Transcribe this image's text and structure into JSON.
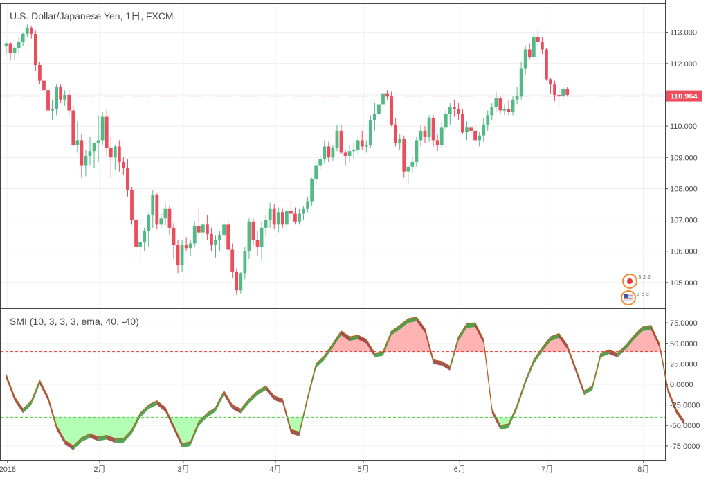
{
  "chart_data": [
    {
      "type": "candlestick",
      "title": "U.S. Dollar/Japanese Yen, 1日, FXCM",
      "ylim": [
        104.2,
        113.9
      ],
      "y_ticks": [
        "113.000",
        "112.000",
        "111.000",
        "110.000",
        "109.000",
        "108.000",
        "107.000",
        "106.000",
        "105.000"
      ],
      "last_price": "110.964",
      "up_color": "#53b987",
      "down_color": "#eb4d5c",
      "ohlc": [
        [
          112.55,
          112.7,
          112.3,
          112.65
        ],
        [
          112.65,
          112.7,
          112.1,
          112.35
        ],
        [
          112.35,
          112.55,
          112.1,
          112.5
        ],
        [
          112.5,
          112.85,
          112.35,
          112.7
        ],
        [
          112.7,
          113.0,
          112.55,
          112.95
        ],
        [
          112.95,
          113.25,
          112.85,
          113.15
        ],
        [
          113.15,
          113.2,
          112.8,
          112.95
        ],
        [
          112.95,
          113.05,
          111.75,
          111.95
        ],
        [
          111.95,
          112.05,
          111.35,
          111.45
        ],
        [
          111.45,
          111.55,
          111.05,
          111.15
        ],
        [
          111.15,
          111.25,
          110.25,
          110.5
        ],
        [
          110.5,
          110.85,
          110.2,
          110.55
        ],
        [
          110.55,
          111.35,
          110.35,
          111.25
        ],
        [
          111.25,
          111.35,
          110.75,
          110.85
        ],
        [
          110.85,
          111.15,
          110.65,
          111.0
        ],
        [
          111.0,
          111.15,
          110.35,
          110.5
        ],
        [
          110.5,
          110.65,
          109.35,
          109.4
        ],
        [
          109.4,
          110.15,
          109.15,
          109.55
        ],
        [
          109.55,
          109.75,
          108.35,
          108.75
        ],
        [
          108.75,
          109.25,
          108.4,
          109.05
        ],
        [
          109.05,
          109.65,
          108.75,
          109.2
        ],
        [
          109.2,
          109.45,
          108.65,
          109.45
        ],
        [
          109.45,
          110.35,
          108.85,
          109.55
        ],
        [
          109.55,
          110.45,
          109.4,
          110.3
        ],
        [
          110.3,
          110.55,
          109.05,
          109.3
        ],
        [
          109.3,
          109.65,
          108.35,
          109.0
        ],
        [
          109.0,
          109.4,
          108.6,
          109.35
        ],
        [
          109.35,
          109.55,
          108.55,
          108.85
        ],
        [
          108.85,
          109.0,
          108.45,
          108.65
        ],
        [
          108.65,
          108.95,
          107.75,
          107.95
        ],
        [
          107.95,
          108.05,
          106.85,
          107.0
        ],
        [
          107.0,
          107.15,
          105.85,
          106.15
        ],
        [
          106.15,
          106.75,
          105.55,
          106.3
        ],
        [
          106.3,
          106.75,
          106.0,
          106.65
        ],
        [
          106.65,
          107.2,
          106.15,
          107.15
        ],
        [
          107.15,
          107.95,
          106.75,
          107.8
        ],
        [
          107.8,
          107.85,
          106.7,
          106.85
        ],
        [
          106.85,
          107.2,
          106.75,
          107.05
        ],
        [
          107.05,
          107.55,
          106.8,
          107.35
        ],
        [
          107.35,
          107.45,
          106.5,
          106.75
        ],
        [
          106.75,
          106.9,
          105.75,
          106.2
        ],
        [
          106.2,
          106.35,
          105.3,
          105.55
        ],
        [
          105.55,
          106.35,
          105.35,
          106.2
        ],
        [
          106.2,
          106.45,
          106.0,
          106.1
        ],
        [
          106.1,
          106.35,
          105.85,
          106.25
        ],
        [
          106.25,
          106.95,
          106.15,
          106.8
        ],
        [
          106.8,
          107.35,
          106.5,
          106.6
        ],
        [
          106.6,
          106.95,
          106.35,
          106.85
        ],
        [
          106.85,
          107.15,
          106.35,
          106.55
        ],
        [
          106.55,
          106.75,
          106.0,
          106.2
        ],
        [
          106.2,
          106.5,
          105.8,
          106.35
        ],
        [
          106.35,
          106.65,
          106.0,
          106.5
        ],
        [
          106.5,
          106.95,
          106.15,
          106.85
        ],
        [
          106.85,
          107.0,
          106.0,
          106.05
        ],
        [
          106.05,
          106.25,
          105.15,
          105.35
        ],
        [
          105.35,
          105.45,
          104.6,
          104.75
        ],
        [
          104.75,
          105.35,
          104.65,
          105.3
        ],
        [
          105.3,
          106.15,
          105.1,
          106.0
        ],
        [
          106.0,
          107.05,
          105.75,
          106.95
        ],
        [
          106.95,
          107.05,
          106.2,
          106.35
        ],
        [
          106.35,
          106.65,
          105.85,
          106.15
        ],
        [
          106.15,
          106.95,
          105.7,
          106.75
        ],
        [
          106.75,
          107.15,
          106.5,
          107.0
        ],
        [
          107.0,
          107.55,
          106.75,
          107.35
        ],
        [
          107.35,
          107.5,
          106.7,
          106.85
        ],
        [
          106.85,
          107.4,
          106.6,
          107.25
        ],
        [
          107.25,
          107.35,
          106.75,
          106.85
        ],
        [
          106.85,
          107.45,
          106.7,
          107.3
        ],
        [
          107.3,
          107.65,
          107.0,
          107.2
        ],
        [
          107.2,
          107.4,
          106.85,
          106.95
        ],
        [
          106.95,
          107.35,
          106.85,
          107.2
        ],
        [
          107.2,
          107.45,
          107.0,
          107.35
        ],
        [
          107.35,
          107.75,
          107.25,
          107.6
        ],
        [
          107.6,
          108.35,
          107.45,
          108.3
        ],
        [
          108.3,
          108.85,
          108.1,
          108.75
        ],
        [
          108.75,
          109.05,
          108.6,
          108.95
        ],
        [
          108.95,
          109.55,
          108.8,
          109.35
        ],
        [
          109.35,
          109.5,
          108.85,
          109.0
        ],
        [
          109.0,
          109.4,
          108.9,
          109.3
        ],
        [
          109.3,
          110.05,
          109.2,
          109.85
        ],
        [
          109.85,
          110.05,
          109.1,
          109.15
        ],
        [
          109.15,
          109.25,
          108.75,
          109.05
        ],
        [
          109.05,
          109.4,
          108.85,
          109.2
        ],
        [
          109.2,
          109.45,
          108.95,
          109.25
        ],
        [
          109.25,
          109.65,
          109.1,
          109.55
        ],
        [
          109.55,
          109.85,
          109.25,
          109.35
        ],
        [
          109.35,
          109.55,
          109.15,
          109.4
        ],
        [
          109.4,
          110.35,
          109.3,
          110.2
        ],
        [
          110.2,
          110.75,
          109.85,
          110.4
        ],
        [
          110.4,
          110.9,
          110.25,
          110.7
        ],
        [
          110.7,
          111.45,
          110.5,
          111.05
        ],
        [
          111.05,
          111.15,
          110.85,
          110.95
        ],
        [
          110.95,
          111.1,
          110.0,
          110.05
        ],
        [
          110.05,
          110.25,
          109.35,
          109.45
        ],
        [
          109.45,
          109.75,
          109.25,
          109.6
        ],
        [
          109.6,
          109.7,
          108.35,
          108.55
        ],
        [
          108.55,
          108.75,
          108.15,
          108.7
        ],
        [
          108.7,
          109.0,
          108.5,
          108.85
        ],
        [
          108.85,
          109.65,
          108.7,
          109.55
        ],
        [
          109.55,
          110.05,
          109.35,
          109.85
        ],
        [
          109.85,
          110.0,
          109.45,
          109.65
        ],
        [
          109.65,
          110.35,
          109.5,
          110.25
        ],
        [
          110.25,
          110.35,
          109.35,
          109.55
        ],
        [
          109.55,
          109.75,
          109.2,
          109.4
        ],
        [
          109.4,
          110.15,
          109.3,
          109.95
        ],
        [
          109.95,
          110.55,
          109.85,
          110.4
        ],
        [
          110.4,
          110.75,
          110.05,
          110.6
        ],
        [
          110.6,
          110.85,
          110.3,
          110.55
        ],
        [
          110.55,
          110.75,
          110.2,
          110.4
        ],
        [
          110.4,
          110.55,
          109.75,
          109.8
        ],
        [
          109.8,
          110.15,
          109.55,
          109.95
        ],
        [
          109.95,
          110.05,
          109.65,
          109.85
        ],
        [
          109.85,
          110.05,
          109.4,
          109.55
        ],
        [
          109.55,
          109.8,
          109.35,
          109.7
        ],
        [
          109.7,
          110.25,
          109.5,
          110.05
        ],
        [
          110.05,
          110.5,
          109.85,
          110.35
        ],
        [
          110.35,
          110.75,
          110.2,
          110.6
        ],
        [
          110.6,
          111.1,
          110.45,
          110.9
        ],
        [
          110.9,
          110.95,
          110.4,
          110.5
        ],
        [
          110.5,
          110.7,
          110.35,
          110.55
        ],
        [
          110.55,
          110.85,
          110.35,
          110.45
        ],
        [
          110.45,
          110.95,
          110.35,
          110.85
        ],
        [
          110.85,
          111.25,
          110.7,
          110.95
        ],
        [
          110.95,
          112.05,
          110.85,
          111.85
        ],
        [
          111.85,
          112.55,
          111.65,
          112.45
        ],
        [
          112.45,
          112.65,
          112.15,
          112.2
        ],
        [
          112.2,
          112.95,
          112.1,
          112.85
        ],
        [
          112.85,
          113.15,
          112.55,
          112.7
        ],
        [
          112.7,
          112.85,
          112.3,
          112.45
        ],
        [
          112.45,
          112.5,
          111.45,
          111.5
        ],
        [
          111.5,
          111.55,
          111.05,
          111.35
        ],
        [
          111.35,
          111.45,
          110.8,
          111.0
        ],
        [
          111.0,
          111.25,
          110.55,
          110.95
        ],
        [
          110.95,
          111.25,
          110.85,
          111.2
        ],
        [
          111.2,
          111.25,
          110.95,
          111.0
        ]
      ],
      "x_ticks": [
        {
          "label": "2018",
          "index": 0.3
        },
        {
          "label": "2月",
          "index": 22.3
        },
        {
          "label": "3月",
          "index": 42.3
        },
        {
          "label": "4月",
          "index": 64.3
        },
        {
          "label": "5月",
          "index": 85.3
        },
        {
          "label": "6月",
          "index": 108.3
        },
        {
          "label": "7月",
          "index": 129.2
        },
        {
          "label": "8月",
          "index": 152.2
        }
      ],
      "flag_icons": [
        {
          "name": "japan-flag-icon",
          "label": "3 2 2"
        },
        {
          "name": "us-flag-icon",
          "label": "3 3 3"
        }
      ]
    },
    {
      "type": "area",
      "title": "SMI (10, 3, 3, 3, ema, 40, -40)",
      "ylim": [
        -92,
        92
      ],
      "y_ticks": [
        "75.0000",
        "50.0000",
        "25.0000",
        "0.0000",
        "-25.0000",
        "-50.0000",
        "-75.0000"
      ],
      "overbought": 40,
      "oversold": -40,
      "upper_line_color": "#e53935",
      "lower_line_color": "#43d13a",
      "band_colors": {
        "overbought_fill": "#ffb3b3",
        "oversold_fill": "#b3ffb3",
        "smi_up": "#3f9a3f",
        "smi_down": "#9a3f3f"
      },
      "smi": [
        [
          0,
          12
        ],
        [
          2,
          -15
        ],
        [
          4,
          -30
        ],
        [
          6,
          -20
        ],
        [
          8,
          5
        ],
        [
          10,
          -15
        ],
        [
          12,
          -50
        ],
        [
          14,
          -68
        ],
        [
          16,
          -75
        ],
        [
          18,
          -65
        ],
        [
          20,
          -60
        ],
        [
          22,
          -64
        ],
        [
          24,
          -62
        ],
        [
          26,
          -66
        ],
        [
          28,
          -66
        ],
        [
          30,
          -55
        ],
        [
          32,
          -35
        ],
        [
          34,
          -25
        ],
        [
          36,
          -20
        ],
        [
          38,
          -28
        ],
        [
          40,
          -50
        ],
        [
          42,
          -72
        ],
        [
          44,
          -70
        ],
        [
          46,
          -45
        ],
        [
          48,
          -35
        ],
        [
          50,
          -28
        ],
        [
          52,
          -8
        ],
        [
          54,
          -25
        ],
        [
          56,
          -30
        ],
        [
          58,
          -18
        ],
        [
          60,
          -8
        ],
        [
          62,
          -2
        ],
        [
          64,
          -14
        ],
        [
          66,
          -18
        ],
        [
          68,
          -55
        ],
        [
          70,
          -58
        ],
        [
          72,
          -15
        ],
        [
          74,
          25
        ],
        [
          76,
          35
        ],
        [
          78,
          50
        ],
        [
          80,
          65
        ],
        [
          82,
          58
        ],
        [
          84,
          60
        ],
        [
          86,
          55
        ],
        [
          88,
          38
        ],
        [
          90,
          40
        ],
        [
          92,
          65
        ],
        [
          94,
          72
        ],
        [
          96,
          80
        ],
        [
          98,
          82
        ],
        [
          100,
          68
        ],
        [
          102,
          30
        ],
        [
          104,
          28
        ],
        [
          106,
          22
        ],
        [
          108,
          58
        ],
        [
          110,
          74
        ],
        [
          112,
          75
        ],
        [
          114,
          55
        ],
        [
          116,
          -30
        ],
        [
          118,
          -50
        ],
        [
          120,
          -48
        ],
        [
          122,
          -25
        ],
        [
          124,
          5
        ],
        [
          126,
          30
        ],
        [
          128,
          45
        ],
        [
          130,
          58
        ],
        [
          132,
          62
        ],
        [
          134,
          48
        ],
        [
          136,
          20
        ],
        [
          138,
          -8
        ],
        [
          140,
          -2
        ],
        [
          142,
          38
        ],
        [
          144,
          42
        ],
        [
          146,
          38
        ],
        [
          148,
          48
        ],
        [
          150,
          60
        ],
        [
          152,
          70
        ],
        [
          154,
          72
        ],
        [
          156,
          50
        ],
        [
          158,
          -5
        ],
        [
          160,
          -30
        ],
        [
          162,
          -45
        ]
      ],
      "x_ticks_same_as_price": true
    }
  ]
}
